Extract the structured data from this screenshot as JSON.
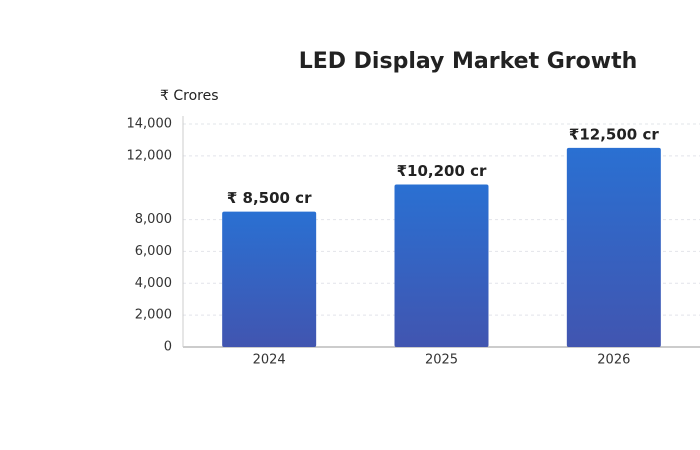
{
  "chart_data": {
    "type": "bar",
    "title": "LED Display Market Growth",
    "y_label": "₹ Crores",
    "categories": [
      "2024",
      "2025",
      "2026"
    ],
    "values": [
      8500,
      10200,
      12500
    ],
    "value_labels": [
      "₹ 8,500 cr",
      "₹10,200 cr",
      "₹12,500 cr"
    ],
    "color": "#2d64c8",
    "ylim": [
      0,
      14000
    ],
    "yticks": [
      0,
      {
        "value": 2000,
        "label": "2,000"
      },
      {
        "value": 4000,
        "label": "4,000"
      },
      {
        "value": 6000,
        "label": "6,000"
      },
      {
        "value": 8000,
        "label": "8,000"
      },
      {
        "value": 12000,
        "label": "12,000"
      },
      {
        "value": 14000,
        "label": "14,000"
      }
    ],
    "grid": true
  }
}
